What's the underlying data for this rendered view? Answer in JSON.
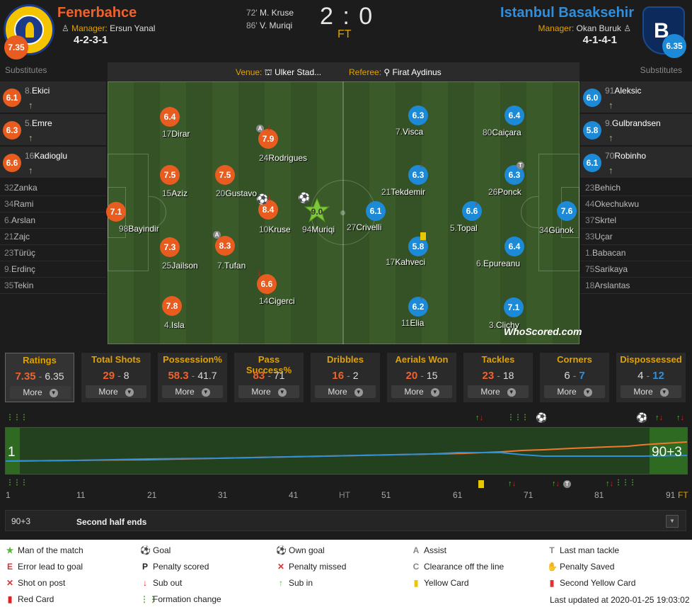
{
  "home": {
    "name": "Fenerbahce",
    "rating": "7.35",
    "manager_label": "Manager:",
    "manager": "Ersun Yanal",
    "formation": "4-2-3-1",
    "color": "#f0622c"
  },
  "away": {
    "name": "Istanbul Basaksehir",
    "rating": "6.35",
    "manager_label": "Manager:",
    "manager": "Okan Buruk",
    "formation": "4-1-4-1",
    "color": "#2f8fdc"
  },
  "score": "2 : 0",
  "status": "FT",
  "scorers": [
    {
      "min": "72'",
      "name": "M. Kruse"
    },
    {
      "min": "86'",
      "name": "V. Muriqi"
    }
  ],
  "venue_label": "Venue:",
  "venue": "Ulker Stad...",
  "referee_label": "Referee:",
  "referee": "Firat Aydinus",
  "substitutes_label": "Substitutes",
  "home_subs": [
    {
      "num": "8.",
      "name": "Ekici",
      "rating": "6.1"
    },
    {
      "num": "5.",
      "name": "Emre",
      "rating": "6.3"
    },
    {
      "num": "16",
      "name": "Kadioglu",
      "rating": "6.6"
    }
  ],
  "home_bench": [
    {
      "num": "32",
      "name": "Zanka"
    },
    {
      "num": "34",
      "name": "Rami"
    },
    {
      "num": "6.",
      "name": "Arslan"
    },
    {
      "num": "21",
      "name": "Zajc"
    },
    {
      "num": "23",
      "name": "Türüç"
    },
    {
      "num": "9.",
      "name": "Erdinç"
    },
    {
      "num": "35",
      "name": "Tekin"
    }
  ],
  "away_subs": [
    {
      "num": "91",
      "name": "Aleksic",
      "rating": "6.0"
    },
    {
      "num": "9.",
      "name": "Gulbrandsen",
      "rating": "5.8"
    },
    {
      "num": "70",
      "name": "Robinho",
      "rating": "6.1"
    }
  ],
  "away_bench": [
    {
      "num": "23",
      "name": "Behich"
    },
    {
      "num": "44",
      "name": "Okechukwu"
    },
    {
      "num": "37",
      "name": "Skrtel"
    },
    {
      "num": "33",
      "name": "Uçar"
    },
    {
      "num": "1.",
      "name": "Babacan"
    },
    {
      "num": "75",
      "name": "Sarikaya"
    },
    {
      "num": "18",
      "name": "Arslantas"
    }
  ],
  "home_players": [
    {
      "num": "98",
      "name": "Bayindir",
      "rating": "7.1"
    },
    {
      "num": "17",
      "name": "Dirar",
      "rating": "6.4"
    },
    {
      "num": "15",
      "name": "Aziz",
      "rating": "7.5"
    },
    {
      "num": "25",
      "name": "Jailson",
      "rating": "7.3"
    },
    {
      "num": "4.",
      "name": "Isla",
      "rating": "7.8"
    },
    {
      "num": "20",
      "name": "Gustavo",
      "rating": "7.5"
    },
    {
      "num": "7.",
      "name": "Tufan",
      "rating": "8.3"
    },
    {
      "num": "24",
      "name": "Rodrigues",
      "rating": "7.9"
    },
    {
      "num": "10",
      "name": "Kruse",
      "rating": "8.4"
    },
    {
      "num": "14",
      "name": "Cigerci",
      "rating": "6.6"
    },
    {
      "num": "94",
      "name": "Muriqi",
      "rating": "9.0"
    }
  ],
  "away_players": [
    {
      "num": "34",
      "name": "Günok",
      "rating": "7.6"
    },
    {
      "num": "80",
      "name": "Caiçara",
      "rating": "6.4"
    },
    {
      "num": "26",
      "name": "Ponck",
      "rating": "6.3"
    },
    {
      "num": "6.",
      "name": "Epureanu",
      "rating": "6.4"
    },
    {
      "num": "3.",
      "name": "Clichy",
      "rating": "7.1"
    },
    {
      "num": "5.",
      "name": "Topal",
      "rating": "6.6"
    },
    {
      "num": "7.",
      "name": "Visca",
      "rating": "6.3"
    },
    {
      "num": "21",
      "name": "Tekdemir",
      "rating": "6.3"
    },
    {
      "num": "17",
      "name": "Kahveci",
      "rating": "5.8"
    },
    {
      "num": "11",
      "name": "Elia",
      "rating": "6.2"
    },
    {
      "num": "27",
      "name": "Crivelli",
      "rating": "6.1"
    }
  ],
  "watermark": "WhoScored.com",
  "stats": [
    {
      "title": "Ratings",
      "home": "7.35",
      "away": "6.35",
      "more": "More"
    },
    {
      "title": "Total Shots",
      "home": "29",
      "away": "8",
      "more": "More"
    },
    {
      "title": "Possession%",
      "home": "58.3",
      "away": "41.7",
      "more": "More"
    },
    {
      "title": "Pass Success%",
      "home": "83",
      "away": "71",
      "more": "More"
    },
    {
      "title": "Dribbles",
      "home": "16",
      "away": "2",
      "more": "More"
    },
    {
      "title": "Aerials Won",
      "home": "20",
      "away": "15",
      "more": "More"
    },
    {
      "title": "Tackles",
      "home": "23",
      "away": "18",
      "more": "More"
    },
    {
      "title": "Corners",
      "home": "6",
      "away": "7",
      "more": "More"
    },
    {
      "title": "Dispossessed",
      "home": "4",
      "away": "12",
      "more": "More"
    }
  ],
  "timeline": {
    "start_label": "1",
    "end_label": "90+3",
    "ticks": [
      "1",
      "11",
      "21",
      "31",
      "41",
      "HT",
      "51",
      "61",
      "71",
      "81",
      "91",
      "FT"
    ]
  },
  "commentary": {
    "minute": "90+3",
    "text": "Second half ends"
  },
  "legend": [
    {
      "icon": "★",
      "label": "Man of the match",
      "color": "#5bb53b"
    },
    {
      "icon": "⚽",
      "label": "Goal",
      "color": "#222"
    },
    {
      "icon": "⚽",
      "label": "Own goal",
      "color": "#d33"
    },
    {
      "icon": "A",
      "label": "Assist",
      "color": "#888"
    },
    {
      "icon": "T",
      "label": "Last man tackle",
      "color": "#888"
    },
    {
      "icon": "E",
      "label": "Error lead to goal",
      "color": "#d33"
    },
    {
      "icon": "P",
      "label": "Penalty scored",
      "color": "#222"
    },
    {
      "icon": "✕",
      "label": "Penalty missed",
      "color": "#d33"
    },
    {
      "icon": "C",
      "label": "Clearance off the line",
      "color": "#888"
    },
    {
      "icon": "✋",
      "label": "Penalty Saved",
      "color": "#aaa"
    },
    {
      "icon": "✕",
      "label": "Shot on post",
      "color": "#d33"
    },
    {
      "icon": "↓",
      "label": "Sub out",
      "color": "#d22"
    },
    {
      "icon": "↑",
      "label": "Sub in",
      "color": "#5bb53b"
    },
    {
      "icon": "▮",
      "label": "Yellow Card",
      "color": "#e8c800"
    },
    {
      "icon": "▮",
      "label": "Second Yellow Card",
      "color": "#d33"
    },
    {
      "icon": "▮",
      "label": "Red Card",
      "color": "#d22"
    },
    {
      "icon": "⋮⋮",
      "label": "Formation change",
      "color": "#5bb53b"
    }
  ],
  "last_updated": "Last updated at 2020-01-25 19:03:02"
}
